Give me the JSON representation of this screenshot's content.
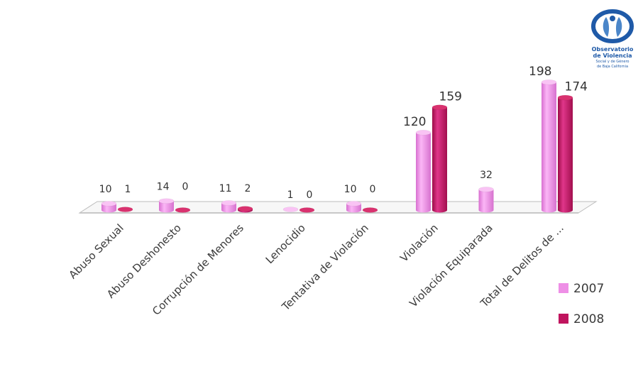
{
  "logo": {
    "line1": "Observatorio",
    "line2": "de Violencia",
    "line3": "Social y de Género",
    "line4": "de Baja California",
    "icon": "people-circle-logo",
    "color": "#1f5aa8"
  },
  "chart_data": {
    "type": "bar",
    "style": "3d-cylinder",
    "categories": [
      "Abuso Sexual",
      "Abuso Deshonesto",
      "Corrupción de Menores",
      "Lenocidio",
      "Tentativa de Violación",
      "Violación",
      "Violación Equiparada",
      "Total de Delitos de ..."
    ],
    "series": [
      {
        "name": "2007",
        "color": "#ee8fe6",
        "values": [
          10,
          14,
          11,
          1,
          10,
          120,
          32,
          198
        ],
        "labels": [
          "10",
          "14",
          "11",
          "1",
          "10",
          "120",
          "32",
          "198"
        ]
      },
      {
        "name": "2008",
        "color": "#c0145e",
        "values": [
          1,
          0,
          2,
          0,
          0,
          159,
          null,
          174
        ],
        "labels": [
          "1",
          "0",
          "2",
          "0",
          "0",
          "159",
          "",
          "174"
        ]
      }
    ],
    "ylim": [
      0,
      200
    ],
    "grid": false,
    "legend": "right"
  }
}
